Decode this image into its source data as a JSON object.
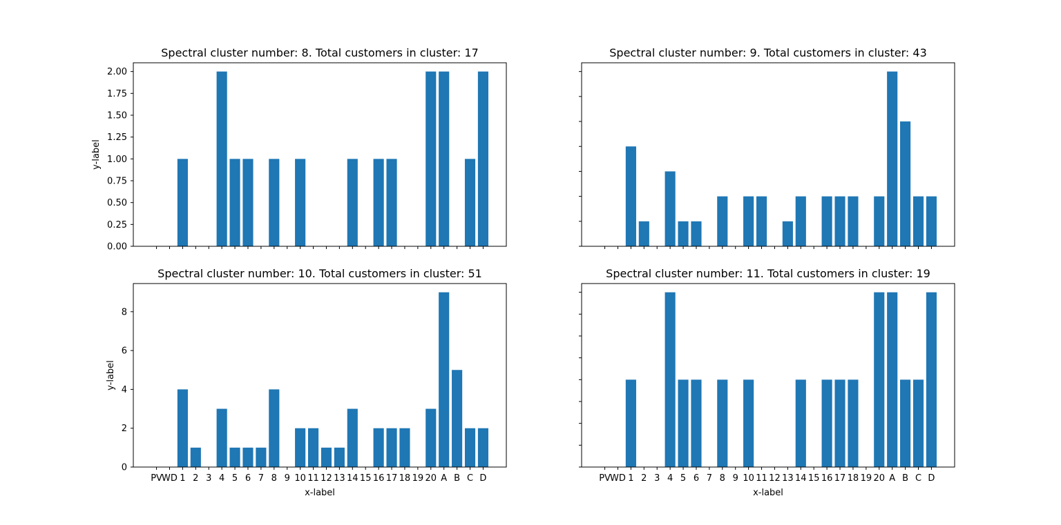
{
  "chart_data": [
    {
      "type": "bar",
      "title": "Spectral cluster number: 8. Total customers in cluster: 17",
      "xlabel": "",
      "ylabel": "y-label",
      "categories": [
        "PV",
        "WD",
        "1",
        "2",
        "3",
        "4",
        "5",
        "6",
        "7",
        "8",
        "9",
        "10",
        "11",
        "12",
        "13",
        "14",
        "15",
        "16",
        "17",
        "18",
        "19",
        "20",
        "A",
        "B",
        "C",
        "D"
      ],
      "values": [
        0,
        0,
        1,
        0,
        0,
        2,
        1,
        1,
        0,
        1,
        0,
        1,
        0,
        0,
        0,
        1,
        0,
        1,
        1,
        0,
        0,
        2,
        2,
        0,
        1,
        2
      ],
      "ylim": [
        0,
        2.1
      ],
      "yticks": [
        "0.00",
        "0.25",
        "0.50",
        "0.75",
        "1.00",
        "1.25",
        "1.50",
        "1.75",
        "2.00"
      ],
      "show_xtick_labels": false,
      "show_ytick_labels": true,
      "color": "#1f77b4"
    },
    {
      "type": "bar",
      "title": "Spectral cluster number: 9. Total customers in cluster: 43",
      "xlabel": "",
      "ylabel": "",
      "categories": [
        "PV",
        "WD",
        "1",
        "2",
        "3",
        "4",
        "5",
        "6",
        "7",
        "8",
        "9",
        "10",
        "11",
        "12",
        "13",
        "14",
        "15",
        "16",
        "17",
        "18",
        "19",
        "20",
        "A",
        "B",
        "C",
        "D"
      ],
      "values": [
        0,
        0,
        4,
        1,
        0,
        3,
        1,
        1,
        0,
        2,
        0,
        2,
        2,
        0,
        1,
        2,
        0,
        2,
        2,
        2,
        0,
        2,
        7,
        5,
        2,
        2
      ],
      "ylim": [
        0,
        7.35
      ],
      "yticks": [
        "0",
        "1",
        "2",
        "3",
        "4",
        "5",
        "6",
        "7"
      ],
      "show_xtick_labels": false,
      "show_ytick_labels": false,
      "color": "#1f77b4"
    },
    {
      "type": "bar",
      "title": "Spectral cluster number: 10. Total customers in cluster: 51",
      "xlabel": "x-label",
      "ylabel": "y-label",
      "categories": [
        "PV",
        "WD",
        "1",
        "2",
        "3",
        "4",
        "5",
        "6",
        "7",
        "8",
        "9",
        "10",
        "11",
        "12",
        "13",
        "14",
        "15",
        "16",
        "17",
        "18",
        "19",
        "20",
        "A",
        "B",
        "C",
        "D"
      ],
      "values": [
        0,
        0,
        4,
        1,
        0,
        3,
        1,
        1,
        1,
        4,
        0,
        2,
        2,
        1,
        1,
        3,
        0,
        2,
        2,
        2,
        0,
        3,
        9,
        5,
        2,
        2
      ],
      "ylim": [
        0,
        9.45
      ],
      "yticks": [
        "0",
        "2",
        "4",
        "6",
        "8"
      ],
      "show_xtick_labels": true,
      "show_ytick_labels": true,
      "color": "#1f77b4"
    },
    {
      "type": "bar",
      "title": "Spectral cluster number: 11. Total customers in cluster: 19",
      "xlabel": "x-label",
      "ylabel": "",
      "categories": [
        "PV",
        "WD",
        "1",
        "2",
        "3",
        "4",
        "5",
        "6",
        "7",
        "8",
        "9",
        "10",
        "11",
        "12",
        "13",
        "14",
        "15",
        "16",
        "17",
        "18",
        "19",
        "20",
        "A",
        "B",
        "C",
        "D"
      ],
      "values": [
        0,
        0,
        1,
        0,
        0,
        2,
        1,
        1,
        0,
        1,
        0,
        1,
        0,
        0,
        0,
        1,
        0,
        1,
        1,
        1,
        0,
        2,
        2,
        1,
        1,
        2
      ],
      "ylim": [
        0,
        2.1
      ],
      "yticks": [
        "0.00",
        "0.25",
        "0.50",
        "0.75",
        "1.00",
        "1.25",
        "1.50",
        "1.75",
        "2.00"
      ],
      "show_xtick_labels": true,
      "show_ytick_labels": false,
      "color": "#1f77b4"
    }
  ]
}
